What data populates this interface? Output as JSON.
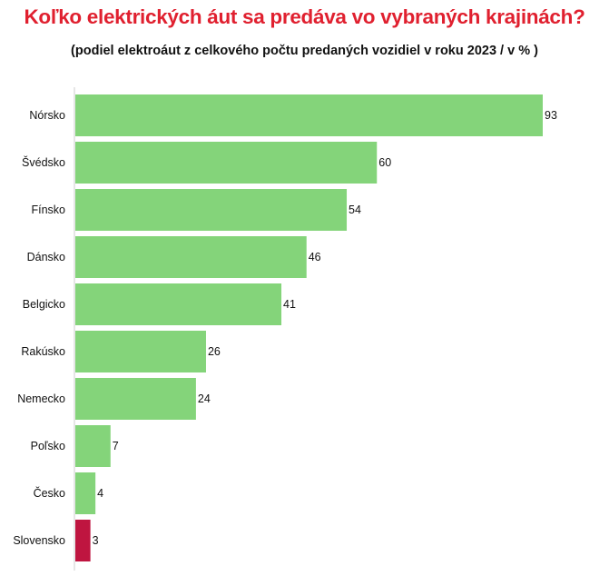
{
  "chart_data": {
    "type": "bar",
    "orientation": "horizontal",
    "title": "Koľko elektrických áut sa predáva vo vybraných krajinách?",
    "subtitle": "(podiel elektroáut z celkového počtu predaných vozidiel v roku 2023 / v % )",
    "categories": [
      "Nórsko",
      "Švédsko",
      "Fínsko",
      "Dánsko",
      "Belgicko",
      "Rakúsko",
      "Nemecko",
      "Poľsko",
      "Česko",
      "Slovensko"
    ],
    "values": [
      93,
      60,
      54,
      46,
      41,
      26,
      24,
      7,
      4,
      3
    ],
    "highlight": "Slovensko",
    "colors": {
      "default": "#84d47a",
      "highlight": "#bf1540"
    },
    "xlim": [
      0,
      93
    ],
    "xlabel": "",
    "ylabel": "",
    "grid": false,
    "legend": "none"
  }
}
